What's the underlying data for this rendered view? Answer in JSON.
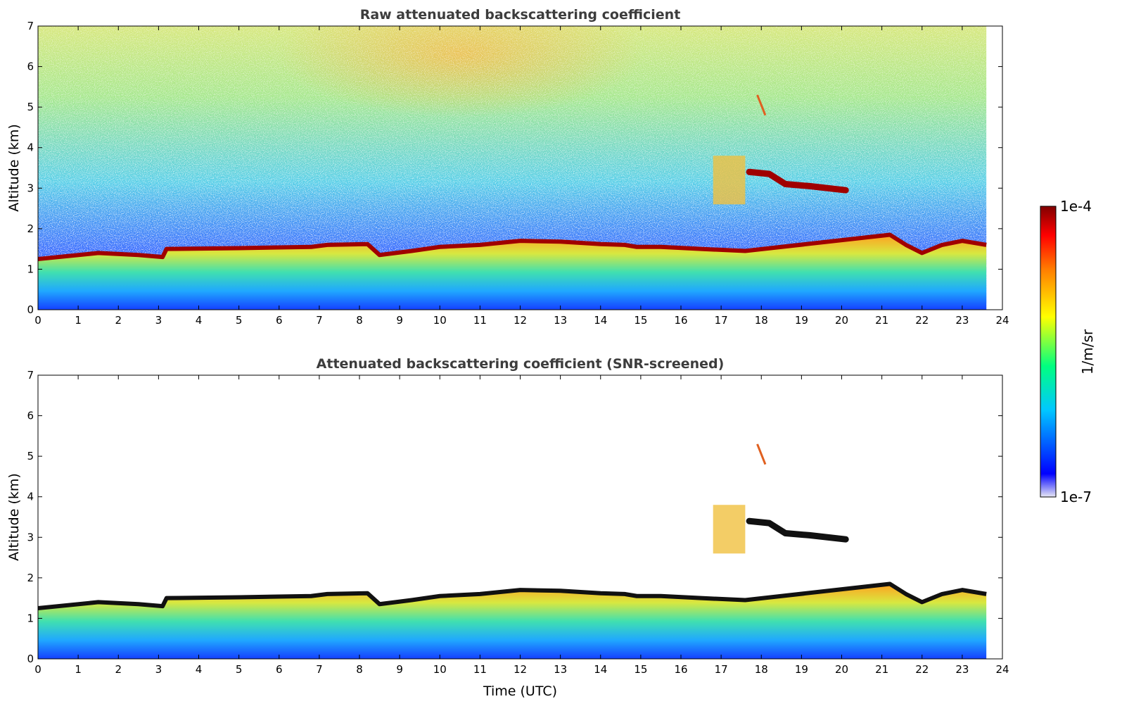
{
  "chart_data": [
    {
      "type": "heatmap",
      "title": "Raw attenuated backscattering coefficient",
      "xlabel": "",
      "ylabel": "Altitude (km)",
      "xlim": [
        0,
        24
      ],
      "ylim": [
        0,
        7
      ],
      "xticks": [
        "0",
        "1",
        "2",
        "3",
        "4",
        "5",
        "6",
        "7",
        "8",
        "9",
        "10",
        "11",
        "12",
        "13",
        "14",
        "15",
        "16",
        "17",
        "18",
        "19",
        "20",
        "21",
        "22",
        "23",
        "24"
      ],
      "yticks": [
        "0",
        "1",
        "2",
        "3",
        "4",
        "5",
        "6",
        "7"
      ],
      "data_end_hour": 23.6,
      "noise_layer": true,
      "boundary_layer_top_km": [
        [
          0,
          1.25
        ],
        [
          1.5,
          1.4
        ],
        [
          2.5,
          1.35
        ],
        [
          3.1,
          1.3
        ],
        [
          3.2,
          1.5
        ],
        [
          5,
          1.52
        ],
        [
          6.8,
          1.55
        ],
        [
          7.2,
          1.6
        ],
        [
          8.2,
          1.62
        ],
        [
          8.5,
          1.35
        ],
        [
          9.3,
          1.45
        ],
        [
          10,
          1.55
        ],
        [
          11,
          1.6
        ],
        [
          12,
          1.7
        ],
        [
          13,
          1.68
        ],
        [
          14,
          1.62
        ],
        [
          14.6,
          1.6
        ],
        [
          14.9,
          1.55
        ],
        [
          15.5,
          1.55
        ],
        [
          16.5,
          1.5
        ],
        [
          17.6,
          1.45
        ],
        [
          21.2,
          1.85
        ],
        [
          21.6,
          1.6
        ],
        [
          22,
          1.4
        ],
        [
          22.5,
          1.6
        ],
        [
          23,
          1.7
        ],
        [
          23.6,
          1.6
        ]
      ],
      "cloud_layers": [
        {
          "name": "mid-level cloud",
          "x": [
            17.7,
            18.2,
            18.6,
            19.2,
            20.1
          ],
          "y": [
            3.4,
            3.35,
            3.1,
            3.05,
            2.95
          ]
        },
        {
          "name": "aerosol plume",
          "x": [
            16.8,
            17.6
          ],
          "y": [
            2.6,
            3.8
          ]
        },
        {
          "name": "virga streak",
          "x": [
            17.9,
            18.1
          ],
          "y": [
            4.8,
            5.3
          ]
        }
      ]
    },
    {
      "type": "heatmap",
      "title": "Attenuated backscattering coefficient (SNR-screened)",
      "xlabel": "Time (UTC)",
      "ylabel": "Altitude (km)",
      "xlim": [
        0,
        24
      ],
      "ylim": [
        0,
        7
      ],
      "xticks": [
        "0",
        "1",
        "2",
        "3",
        "4",
        "5",
        "6",
        "7",
        "8",
        "9",
        "10",
        "11",
        "12",
        "13",
        "14",
        "15",
        "16",
        "17",
        "18",
        "19",
        "20",
        "21",
        "22",
        "23",
        "24"
      ],
      "yticks": [
        "0",
        "1",
        "2",
        "3",
        "4",
        "5",
        "6",
        "7"
      ],
      "data_end_hour": 23.6,
      "noise_layer": false,
      "boundary_layer_top_km": [
        [
          0,
          1.25
        ],
        [
          1.5,
          1.4
        ],
        [
          2.5,
          1.35
        ],
        [
          3.1,
          1.3
        ],
        [
          3.2,
          1.5
        ],
        [
          5,
          1.52
        ],
        [
          6.8,
          1.55
        ],
        [
          7.2,
          1.6
        ],
        [
          8.2,
          1.62
        ],
        [
          8.5,
          1.35
        ],
        [
          9.3,
          1.45
        ],
        [
          10,
          1.55
        ],
        [
          11,
          1.6
        ],
        [
          12,
          1.7
        ],
        [
          13,
          1.68
        ],
        [
          14,
          1.62
        ],
        [
          14.6,
          1.6
        ],
        [
          14.9,
          1.55
        ],
        [
          15.5,
          1.55
        ],
        [
          16.5,
          1.5
        ],
        [
          17.6,
          1.45
        ],
        [
          21.2,
          1.85
        ],
        [
          21.6,
          1.6
        ],
        [
          22,
          1.4
        ],
        [
          22.5,
          1.6
        ],
        [
          23,
          1.7
        ],
        [
          23.6,
          1.6
        ]
      ],
      "cloud_layers": [
        {
          "name": "mid-level cloud",
          "x": [
            17.7,
            18.2,
            18.6,
            19.2,
            20.1
          ],
          "y": [
            3.4,
            3.35,
            3.1,
            3.05,
            2.95
          ]
        },
        {
          "name": "aerosol plume",
          "x": [
            16.8,
            17.6
          ],
          "y": [
            2.6,
            3.8
          ]
        },
        {
          "name": "virga streak",
          "x": [
            17.9,
            18.1
          ],
          "y": [
            4.8,
            5.3
          ]
        }
      ]
    }
  ],
  "colorbar": {
    "label": "1/m/sr",
    "max_label": "1e-4",
    "min_label": "1e-7",
    "range": [
      1e-07,
      0.0001
    ],
    "scale": "log",
    "colormap": "jet",
    "colors": [
      "#e8e8f4",
      "#0000ff",
      "#00c8ff",
      "#00ff80",
      "#ffff00",
      "#ff8000",
      "#ff0000",
      "#800000"
    ]
  }
}
